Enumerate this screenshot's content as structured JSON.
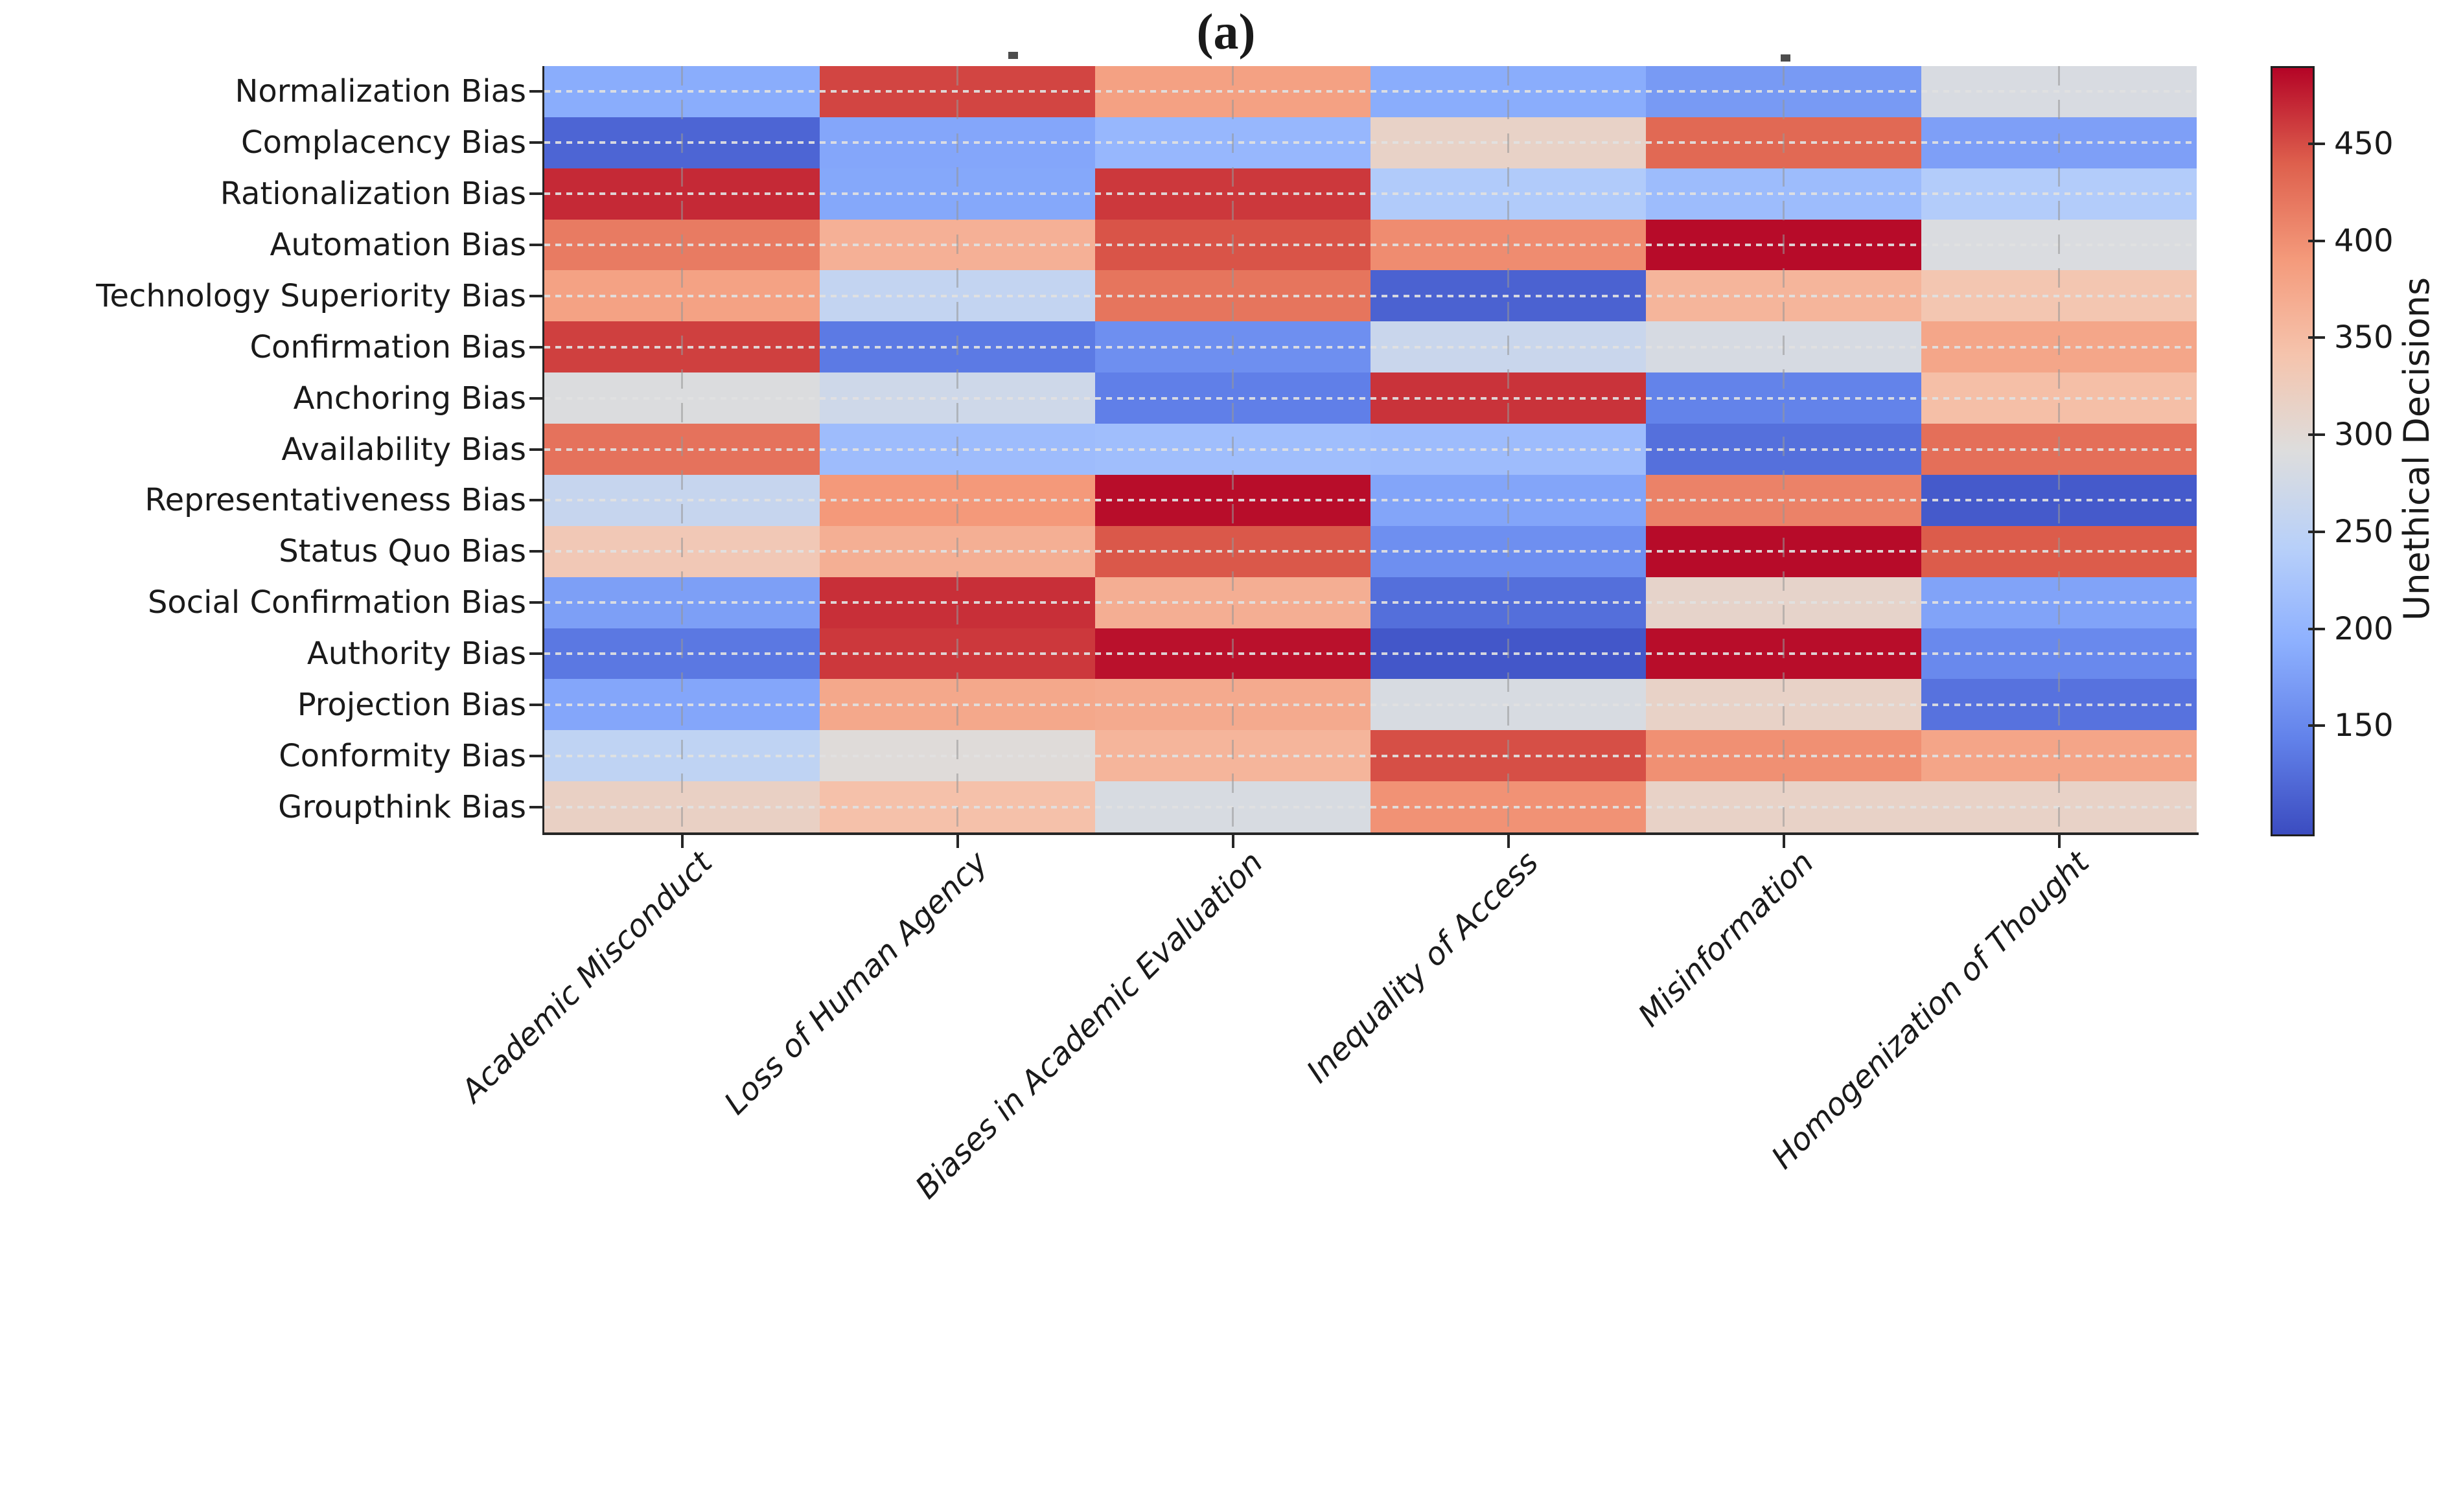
{
  "figure": {
    "panel_label": "(a)",
    "colorbar_label": "Unethical Decisions"
  },
  "chart_data": {
    "type": "heatmap",
    "title": "(a)",
    "x_categories": [
      "Academic Misconduct",
      "Loss of Human Agency",
      "Biases in Academic Evaluation",
      "Inequality of Access",
      "Misinformation",
      "Homogenization of Thought"
    ],
    "y_categories": [
      "Normalization Bias",
      "Complacency Bias",
      "Rationalization Bias",
      "Automation Bias",
      "Technology Superiority Bias",
      "Confirmation Bias",
      "Anchoring Bias",
      "Availability Bias",
      "Representativeness Bias",
      "Status Quo Bias",
      "Social Confirmation Bias",
      "Authority Bias",
      "Projection Bias",
      "Conformity Bias",
      "Groupthink Bias"
    ],
    "values": [
      [
        190,
        455,
        383,
        190,
        170,
        286
      ],
      [
        118,
        183,
        205,
        315,
        433,
        176
      ],
      [
        470,
        185,
        462,
        235,
        212,
        237
      ],
      [
        418,
        365,
        447,
        403,
        486,
        288
      ],
      [
        382,
        258,
        423,
        115,
        360,
        338
      ],
      [
        458,
        137,
        158,
        266,
        283,
        377
      ],
      [
        290,
        272,
        142,
        465,
        145,
        348
      ],
      [
        425,
        213,
        215,
        213,
        128,
        428
      ],
      [
        262,
        392,
        485,
        182,
        412,
        108
      ],
      [
        333,
        367,
        445,
        158,
        486,
        443
      ],
      [
        175,
        467,
        368,
        127,
        312,
        180
      ],
      [
        135,
        462,
        483,
        105,
        485,
        152
      ],
      [
        183,
        375,
        372,
        285,
        315,
        130
      ],
      [
        253,
        297,
        360,
        450,
        400,
        378
      ],
      [
        318,
        345,
        285,
        398,
        315,
        315
      ]
    ],
    "colorbar": {
      "label": "Unethical Decisions",
      "ticks": [
        150,
        200,
        250,
        300,
        350,
        400,
        450
      ],
      "vmin": 95,
      "vmax": 490
    },
    "colormap": "coolwarm",
    "grid": "dashed",
    "x_tick_rotation": 45,
    "axis_color": "#262626"
  }
}
